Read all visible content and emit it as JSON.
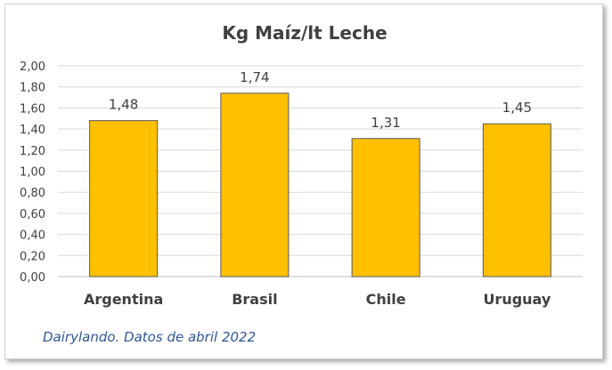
{
  "chart_data": {
    "type": "bar",
    "title": "Kg Maíz/lt Leche",
    "categories": [
      "Argentina",
      "Brasil",
      "Chile",
      "Uruguay"
    ],
    "values": [
      1.48,
      1.74,
      1.31,
      1.45
    ],
    "value_labels": [
      "1,48",
      "1,74",
      "1,31",
      "1,45"
    ],
    "yticks": [
      "0,00",
      "0,20",
      "0,40",
      "0,60",
      "0,80",
      "1,00",
      "1,20",
      "1,40",
      "1,60",
      "1,80",
      "2,00"
    ],
    "ylim": [
      0,
      2
    ],
    "grid": true,
    "legend": "none",
    "colors": {
      "bar": "#ffc000",
      "bar_edge": "#595959",
      "grid": "#d9d9d9",
      "text": "#404040",
      "source": "#2f5597"
    }
  },
  "source_note": "Dairylando. Datos de abril 2022"
}
